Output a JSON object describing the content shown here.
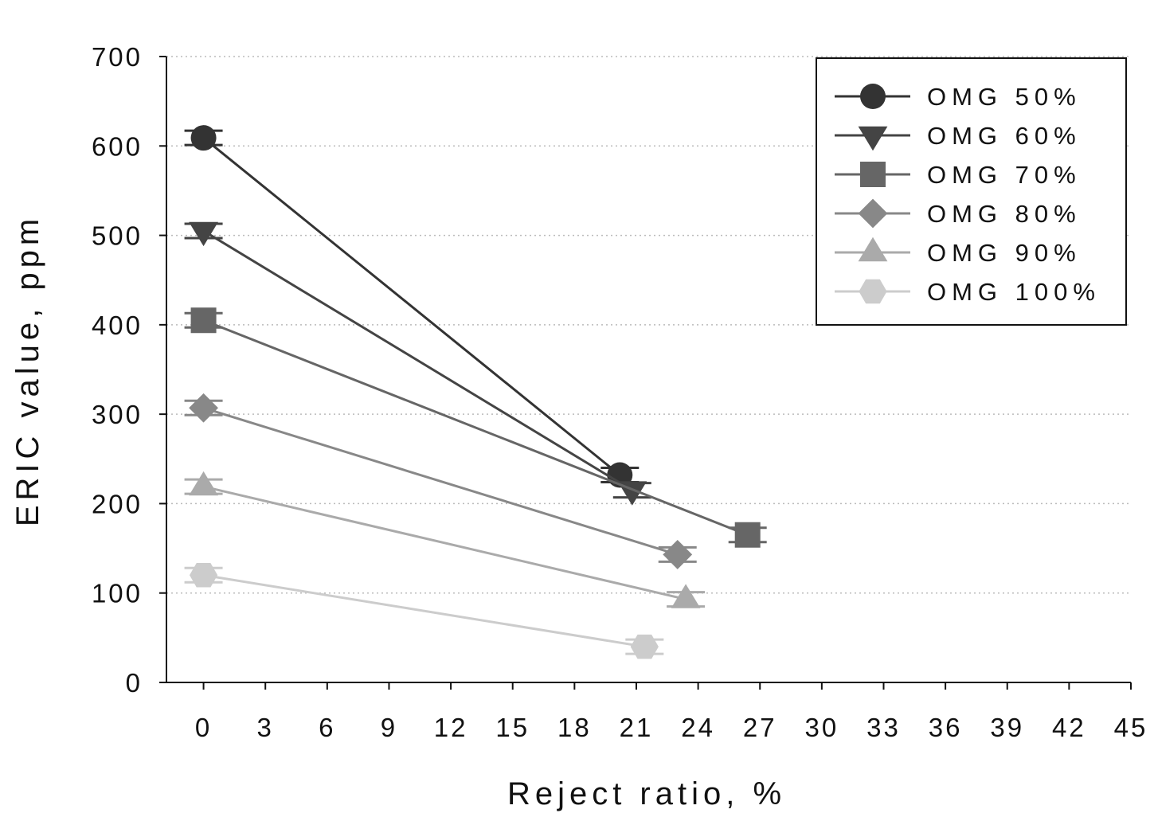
{
  "chart_data": {
    "type": "line",
    "title": "",
    "xlabel": "Reject ratio, %",
    "ylabel": "ERIC value, ppm",
    "xlim": [
      -1.8,
      45
    ],
    "ylim": [
      0,
      700
    ],
    "xticks": [
      0,
      3,
      6,
      9,
      12,
      15,
      18,
      21,
      24,
      27,
      30,
      33,
      36,
      39,
      42,
      45
    ],
    "yticks": [
      0,
      100,
      200,
      300,
      400,
      500,
      600,
      700
    ],
    "grid": "horizontal-dotted",
    "legend_position": "top-right",
    "series": [
      {
        "name": "OMG 50%",
        "marker": "circle",
        "color": "#333333",
        "x": [
          0,
          20.2
        ],
        "y": [
          609,
          232
        ]
      },
      {
        "name": "OMG 60%",
        "marker": "triangle-down",
        "color": "#444444",
        "x": [
          0,
          20.8
        ],
        "y": [
          505,
          215
        ]
      },
      {
        "name": "OMG 70%",
        "marker": "square",
        "color": "#666666",
        "x": [
          0,
          26.4
        ],
        "y": [
          405,
          165
        ]
      },
      {
        "name": "OMG 80%",
        "marker": "diamond",
        "color": "#888888",
        "x": [
          0,
          23
        ],
        "y": [
          307,
          143
        ]
      },
      {
        "name": "OMG 90%",
        "marker": "triangle-up",
        "color": "#aaaaaa",
        "x": [
          0,
          23.4
        ],
        "y": [
          219,
          93
        ]
      },
      {
        "name": "OMG 100%",
        "marker": "hexagon",
        "color": "#cccccc",
        "x": [
          0,
          21.4
        ],
        "y": [
          120,
          40
        ]
      }
    ]
  }
}
